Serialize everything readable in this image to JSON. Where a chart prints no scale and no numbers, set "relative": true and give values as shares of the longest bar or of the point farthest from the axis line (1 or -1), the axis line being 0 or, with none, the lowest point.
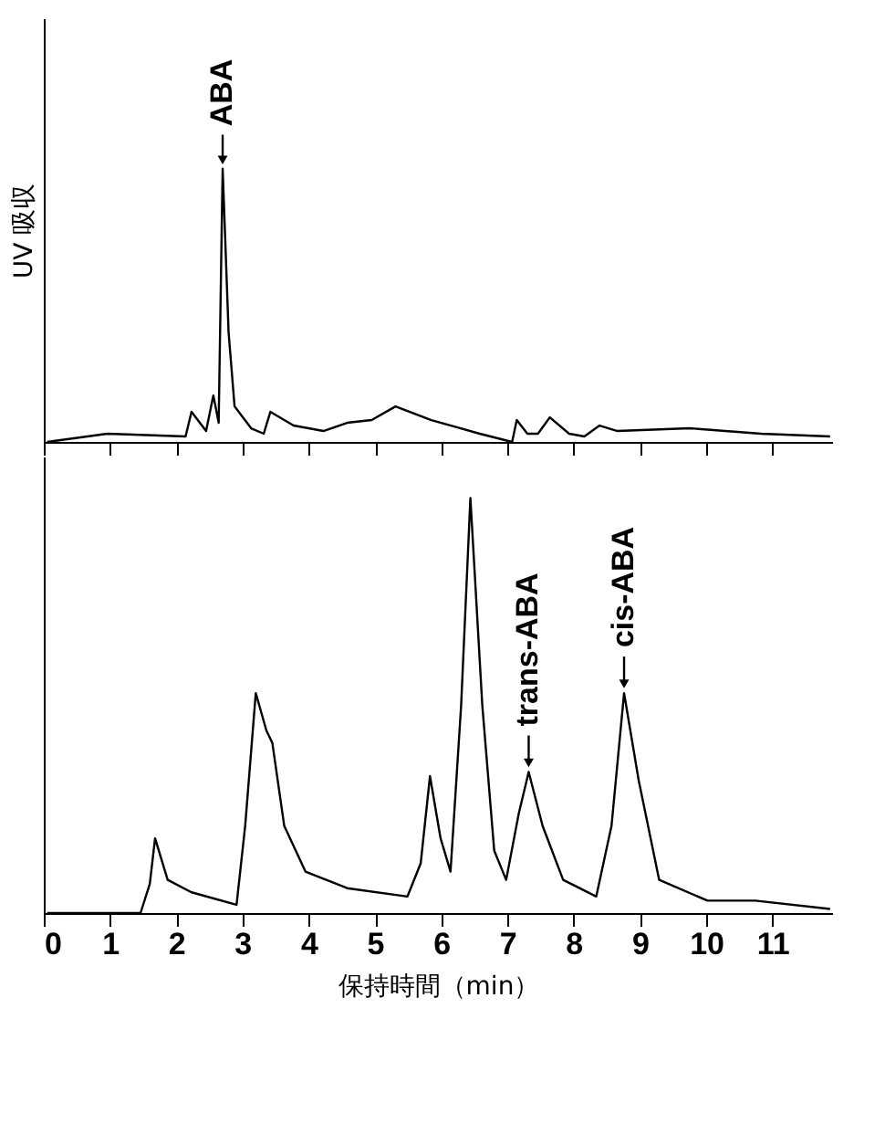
{
  "chart_data": [
    {
      "type": "line",
      "relative": true,
      "ylabel": "UV 吸収",
      "xlim": [
        0,
        11.9
      ],
      "xticks": [
        {
          "value": 0,
          "label": null
        },
        {
          "value": 1,
          "label": null
        },
        {
          "value": 2,
          "label": null
        },
        {
          "value": 3,
          "label": null
        },
        {
          "value": 4,
          "label": null
        },
        {
          "value": 5,
          "label": null
        },
        {
          "value": 6,
          "label": null
        },
        {
          "value": 7,
          "label": null
        },
        {
          "value": 8,
          "label": null
        },
        {
          "value": 9,
          "label": null
        },
        {
          "value": 10,
          "label": null
        },
        {
          "value": 11,
          "label": null
        }
      ],
      "tick_labels": false,
      "series": [
        {
          "color": "#000000",
          "x": [
            0.05,
            0.96,
            2.14,
            2.23,
            2.45,
            2.56,
            2.64,
            2.7,
            2.79,
            2.88,
            3.13,
            3.32,
            3.42,
            3.77,
            4.22,
            4.58,
            4.95,
            5.31,
            5.85,
            6.58,
            7.07,
            7.14,
            7.3,
            7.46,
            7.64,
            7.93,
            8.16,
            8.39,
            8.66,
            9.75,
            10.83,
            11.87
          ],
          "values": [
            0,
            0.03,
            0.02,
            0.11,
            0.04,
            0.17,
            0.07,
            1.0,
            0.4,
            0.13,
            0.05,
            0.03,
            0.11,
            0.06,
            0.04,
            0.07,
            0.08,
            0.13,
            0.08,
            0.03,
            0.0,
            0.08,
            0.03,
            0.03,
            0.09,
            0.03,
            0.02,
            0.06,
            0.04,
            0.05,
            0.03,
            0.02
          ]
        }
      ],
      "annotations": [
        {
          "text": "ABA",
          "x": 2.7,
          "y": 1.0
        }
      ]
    },
    {
      "type": "line",
      "relative": true,
      "xlabel": "保持時間（min）",
      "xlim": [
        0,
        11.9
      ],
      "xticks": [
        0,
        1,
        2,
        3,
        4,
        5,
        6,
        7,
        8,
        9,
        10,
        11
      ],
      "tick_labels": "x",
      "series": [
        {
          "color": "#000000",
          "x": [
            0.05,
            1.46,
            1.6,
            1.68,
            1.87,
            2.23,
            2.91,
            3.04,
            3.2,
            3.36,
            3.45,
            3.63,
            3.95,
            4.58,
            5.49,
            5.69,
            5.83,
            5.99,
            6.14,
            6.3,
            6.44,
            6.62,
            6.8,
            6.98,
            7.17,
            7.32,
            7.53,
            7.84,
            8.34,
            8.57,
            8.76,
            8.98,
            9.29,
            10.02,
            10.74,
            11.87
          ],
          "values": [
            0,
            0,
            0.07,
            0.18,
            0.08,
            0.05,
            0.02,
            0.21,
            0.53,
            0.44,
            0.41,
            0.21,
            0.1,
            0.06,
            0.04,
            0.12,
            0.33,
            0.18,
            0.1,
            0.5,
            1.0,
            0.5,
            0.15,
            0.08,
            0.24,
            0.34,
            0.21,
            0.08,
            0.04,
            0.21,
            0.53,
            0.32,
            0.08,
            0.03,
            0.03,
            0.01
          ]
        }
      ],
      "annotations": [
        {
          "text": "trans-ABA",
          "x": 7.32,
          "y": 0.34
        },
        {
          "text": "cis-ABA",
          "x": 8.76,
          "y": 0.53
        }
      ]
    }
  ]
}
